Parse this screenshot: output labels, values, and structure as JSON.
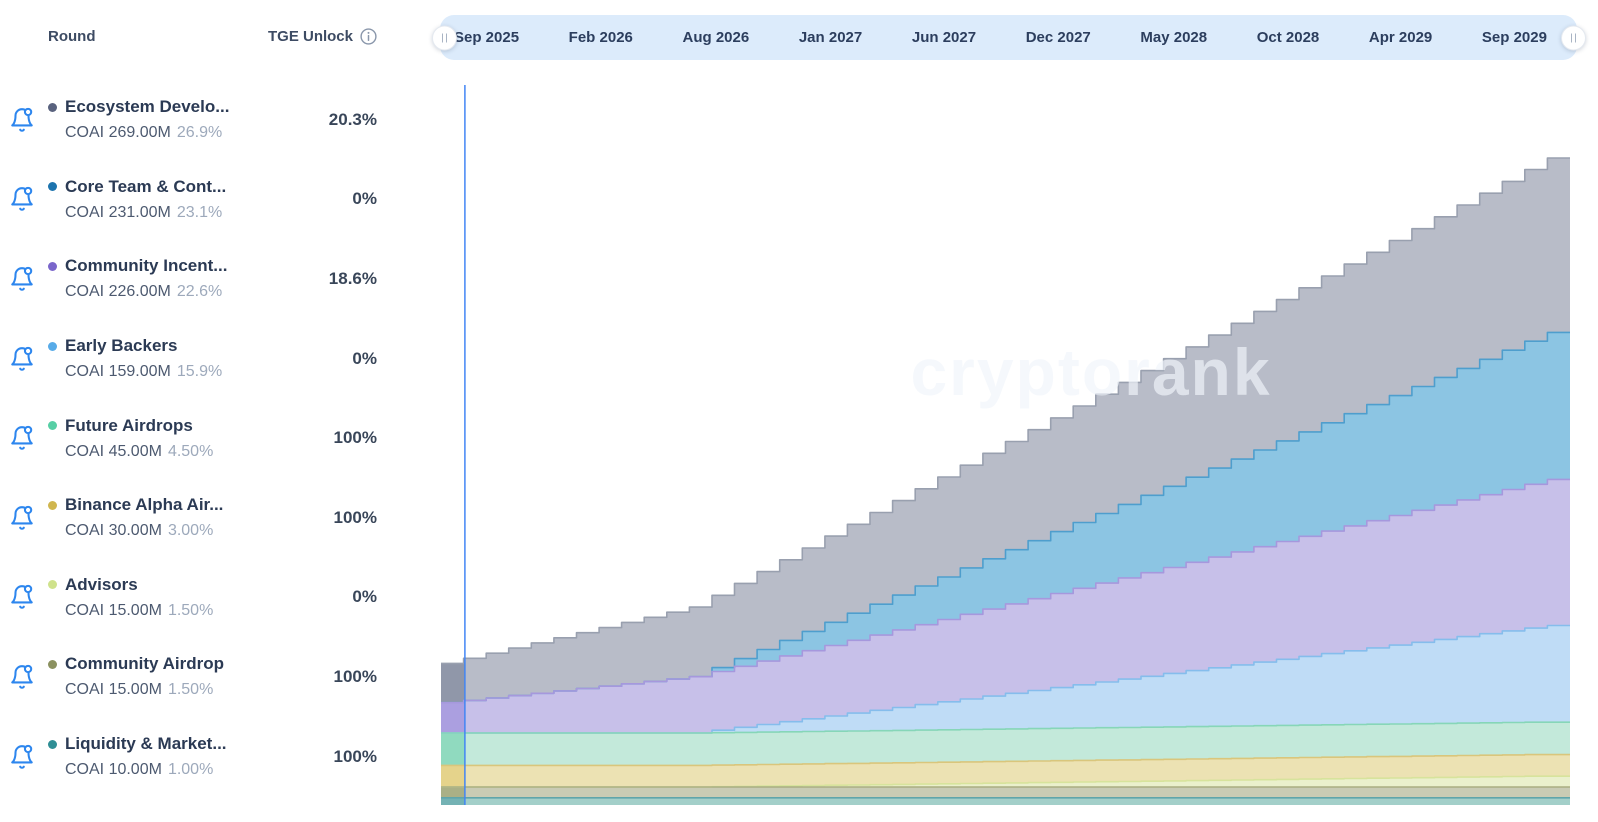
{
  "table": {
    "round_header": "Round",
    "tge_header": "TGE Unlock",
    "rows": [
      {
        "name": "Ecosystem Develo...",
        "amount": "COAI 269.00M",
        "share": "26.9%",
        "tge_unlock": "20.3%",
        "dot_color": "#59627e"
      },
      {
        "name": "Core Team & Cont...",
        "amount": "COAI 231.00M",
        "share": "23.1%",
        "tge_unlock": "0%",
        "dot_color": "#1d74ae"
      },
      {
        "name": "Community Incent...",
        "amount": "COAI 226.00M",
        "share": "22.6%",
        "tge_unlock": "18.6%",
        "dot_color": "#7a66cb"
      },
      {
        "name": "Early Backers",
        "amount": "COAI 159.00M",
        "share": "15.9%",
        "tge_unlock": "0%",
        "dot_color": "#58abe8"
      },
      {
        "name": "Future Airdrops",
        "amount": "COAI 45.00M",
        "share": "4.50%",
        "tge_unlock": "100%",
        "dot_color": "#57cfa5"
      },
      {
        "name": "Binance Alpha Air...",
        "amount": "COAI 30.00M",
        "share": "3.00%",
        "tge_unlock": "100%",
        "dot_color": "#d0b64f"
      },
      {
        "name": "Advisors",
        "amount": "COAI 15.00M",
        "share": "1.50%",
        "tge_unlock": "0%",
        "dot_color": "#cfe28c"
      },
      {
        "name": "Community Airdrop",
        "amount": "COAI 15.00M",
        "share": "1.50%",
        "tge_unlock": "100%",
        "dot_color": "#8b9160"
      },
      {
        "name": "Liquidity & Market...",
        "amount": "COAI 10.00M",
        "share": "1.00%",
        "tge_unlock": "100%",
        "dot_color": "#2f8e95"
      }
    ]
  },
  "timeline_bg": "#dcebfb",
  "chart_data": {
    "type": "area",
    "subtype": "stacked-monthly-step-unlock",
    "unit": "COAI millions",
    "token": "COAI",
    "total_supply_m": 1000,
    "months": 50,
    "x_start": "Sep 2025",
    "x_end": "Sep 2029",
    "x_tick_labels": [
      "Sep 2025",
      "Feb 2026",
      "Aug 2026",
      "Jan 2027",
      "Jun 2027",
      "Dec 2027",
      "May 2028",
      "Oct 2028",
      "Apr 2029",
      "Sep 2029"
    ],
    "ylim": [
      0,
      1000
    ],
    "grid": false,
    "legend_position": "left-table",
    "watermark": "cryptorank",
    "now_line": {
      "color": "#4285f4",
      "month_offset": 1.06
    },
    "series_note": "bottom-to-top stacking; unlocked(m) = TGE + linear monthly vesting between vest_start and vest_end (months, estimated from chart)",
    "series": [
      {
        "name": "Liquidity & Market...",
        "total_m": 10,
        "tge_pct": 100,
        "vest_start_month": 0,
        "vest_end_month": 0,
        "fill": "#a3cfc9",
        "fill_past": "#74b2b4",
        "stroke": "#5fa5aa"
      },
      {
        "name": "Community Airdrop",
        "total_m": 15,
        "tge_pct": 100,
        "vest_start_month": 0,
        "vest_end_month": 0,
        "fill": "#c9cbb4",
        "fill_past": "#aab086",
        "stroke": "#a9ae82"
      },
      {
        "name": "Advisors",
        "total_m": 15,
        "tge_pct": 0,
        "vest_start_month": 12,
        "vest_end_month": 48,
        "fill": "#eaf0cc",
        "fill_past": "#dfe9a8",
        "stroke": "#d7e39c"
      },
      {
        "name": "Binance Alpha Air...",
        "total_m": 30,
        "tge_pct": 100,
        "vest_start_month": 0,
        "vest_end_month": 0,
        "fill": "#ece2b3",
        "fill_past": "#e5d38b",
        "stroke": "#d9c67c"
      },
      {
        "name": "Future Airdrops",
        "total_m": 45,
        "tge_pct": 100,
        "vest_start_month": 0,
        "vest_end_month": 0,
        "fill": "#c3e9da",
        "fill_past": "#90dabf",
        "stroke": "#86d6b8"
      },
      {
        "name": "Early Backers",
        "total_m": 159,
        "tge_pct": 0,
        "vest_start_month": 12,
        "vest_end_month": 56,
        "fill": "#bfdcf6",
        "fill_past": "#a8cef2",
        "stroke": "#85bdec"
      },
      {
        "name": "Community Incent...",
        "total_m": 226,
        "tge_pct": 18.6,
        "vest_start_month": 1,
        "vest_end_month": 56,
        "fill": "#c7c0e9",
        "fill_past": "#ab9fe0",
        "stroke": "#a698dd"
      },
      {
        "name": "Core Team & Cont...",
        "total_m": 231,
        "tge_pct": 0,
        "vest_start_month": 12,
        "vest_end_month": 54,
        "fill": "#8cc5e3",
        "fill_past": "#74b7da",
        "stroke": "#4e9ecd"
      },
      {
        "name": "Ecosystem Develo...",
        "total_m": 269,
        "tge_pct": 20.3,
        "vest_start_month": 1,
        "vest_end_month": 56,
        "fill": "#b8bcc8",
        "fill_past": "#9097a9",
        "stroke": "#99a0af"
      }
    ]
  }
}
